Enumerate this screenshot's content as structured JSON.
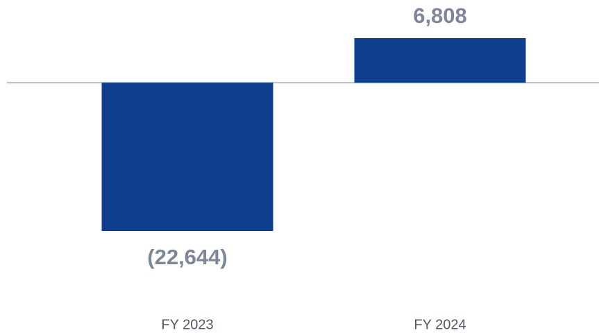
{
  "chart_data": {
    "type": "bar",
    "categories": [
      "FY 2023",
      "FY 2024"
    ],
    "values": [
      -22644,
      6808
    ],
    "value_labels": [
      "(22,644)",
      "6,808"
    ],
    "color": "#0e3f8f"
  }
}
